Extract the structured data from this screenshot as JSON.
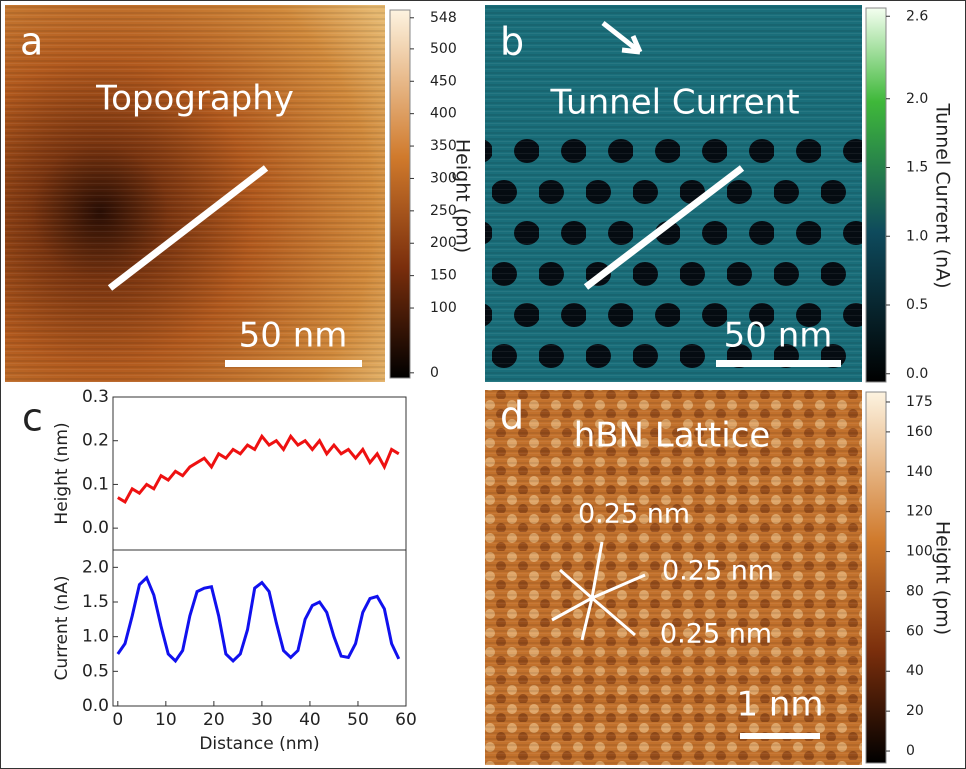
{
  "panels": [
    {
      "letter": "a",
      "title": "Topography",
      "scale_bar": "50 nm",
      "colorbar": {
        "label": "Height (pm)",
        "lim": [
          -8,
          560
        ],
        "ticks": [
          0,
          100,
          150,
          200,
          250,
          300,
          350,
          400,
          450,
          500,
          548
        ]
      }
    },
    {
      "letter": "b",
      "title": "Tunnel Current",
      "scale_bar": "50 nm",
      "colorbar": {
        "label": "Tunnel Current (nA)",
        "lim": [
          -0.06,
          2.66
        ],
        "ticks": [
          {
            "value": 0,
            "label": "0.0"
          },
          0.5,
          {
            "value": 1,
            "label": "1.0"
          },
          1.5,
          {
            "value": 2,
            "label": "2.0"
          },
          2.6
        ]
      }
    },
    {
      "letter": "c"
    },
    {
      "letter": "d",
      "title": "hBN Lattice",
      "scale_bar": "1 nm",
      "annotations": [
        "0.25 nm",
        "0.25 nm",
        "0.25 nm"
      ],
      "colorbar": {
        "label": "Height (pm)",
        "lim": [
          -6,
          180
        ],
        "ticks": [
          0,
          20,
          40,
          60,
          80,
          100,
          120,
          140,
          160,
          175
        ]
      }
    }
  ],
  "chart_data": [
    {
      "type": "line",
      "y_label": "Height (nm)",
      "xlim": [
        -1,
        60
      ],
      "ylim": [
        -0.05,
        0.3
      ],
      "yticks": [
        {
          "value": 0,
          "label": "0.0"
        },
        0.1,
        0.2,
        0.3
      ],
      "x": [
        0,
        1.5,
        3,
        4.5,
        6,
        7.5,
        9,
        10.5,
        12,
        13.5,
        15,
        16.5,
        18,
        19.5,
        21,
        22.5,
        24,
        25.5,
        27,
        28.5,
        30,
        31.5,
        33,
        34.5,
        36,
        37.5,
        39,
        40.5,
        42,
        43.5,
        45,
        46.5,
        48,
        49.5,
        51,
        52.5,
        54,
        55.5,
        57,
        58.5
      ],
      "series": [
        {
          "color": "#ee1111",
          "values": [
            0.07,
            0.06,
            0.09,
            0.08,
            0.1,
            0.09,
            0.12,
            0.11,
            0.13,
            0.12,
            0.14,
            0.15,
            0.16,
            0.14,
            0.17,
            0.16,
            0.18,
            0.17,
            0.19,
            0.18,
            0.21,
            0.19,
            0.2,
            0.18,
            0.21,
            0.19,
            0.2,
            0.18,
            0.2,
            0.17,
            0.19,
            0.17,
            0.18,
            0.16,
            0.18,
            0.15,
            0.17,
            0.14,
            0.18,
            0.17
          ]
        }
      ]
    },
    {
      "type": "line",
      "y_label": "Current (nA)",
      "x_label": "Distance (nm)",
      "xlim": [
        -1,
        60
      ],
      "ylim": [
        0,
        2.25
      ],
      "yticks": [
        {
          "value": 0,
          "label": "0.0"
        },
        0.5,
        {
          "value": 1,
          "label": "1.0"
        },
        1.5,
        {
          "value": 2,
          "label": "2.0"
        }
      ],
      "xticks": [
        0,
        10,
        20,
        30,
        40,
        50,
        60
      ],
      "x": [
        0,
        1.5,
        3,
        4.5,
        6,
        7.5,
        9,
        10.5,
        12,
        13.5,
        15,
        16.5,
        18,
        19.5,
        21,
        22.5,
        24,
        25.5,
        27,
        28.5,
        30,
        31.5,
        33,
        34.5,
        36,
        37.5,
        39,
        40.5,
        42,
        43.5,
        45,
        46.5,
        48,
        49.5,
        51,
        52.5,
        54,
        55.5,
        57,
        58.5
      ],
      "series": [
        {
          "color": "#1111ee",
          "values": [
            0.75,
            0.9,
            1.3,
            1.75,
            1.85,
            1.6,
            1.15,
            0.75,
            0.65,
            0.8,
            1.3,
            1.65,
            1.7,
            1.72,
            1.3,
            0.75,
            0.65,
            0.75,
            1.1,
            1.7,
            1.78,
            1.65,
            1.2,
            0.8,
            0.7,
            0.8,
            1.25,
            1.45,
            1.5,
            1.35,
            1.0,
            0.72,
            0.7,
            0.9,
            1.35,
            1.55,
            1.58,
            1.4,
            0.9,
            0.68
          ]
        }
      ]
    }
  ]
}
